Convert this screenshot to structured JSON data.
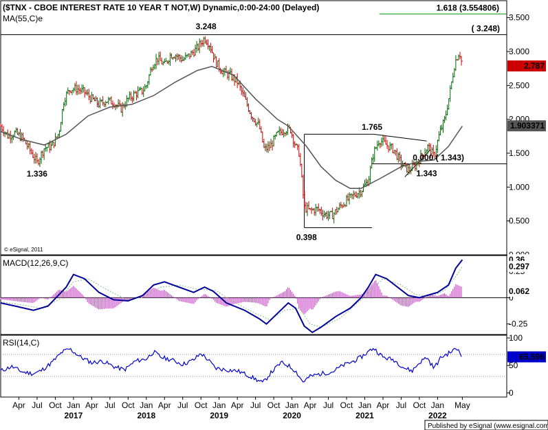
{
  "chart_data": [
    {
      "type": "candlestick",
      "title": "($TNX - CBOE INTEREST RATE 10 YEAR T NOT,W) Dynamic,0:00-24:00 (Delayed)",
      "indicator": "MA(55,C)e",
      "copyright": "© eSignal, 2011",
      "ylim": [
        0,
        3.75
      ],
      "y_ticks": [
        "3.500",
        "3.000",
        "2.500",
        "2.000",
        "1.500",
        "1.000",
        "0.500",
        "0.000"
      ],
      "price_tag": {
        "label": "2.787",
        "value": 2.787,
        "color": "#cc0000"
      },
      "ma_tag": {
        "label": "1.903371",
        "value": 1.903371,
        "color": "#555555"
      },
      "annotations": [
        {
          "label": "3.248",
          "date": 2018.82,
          "value": 3.248,
          "position": "above"
        },
        {
          "label": "( 3.248)",
          "value": 3.248,
          "position": "right"
        },
        {
          "label": "1.618 (3.554806)",
          "value": 3.554806,
          "color": "#009900",
          "position": "right"
        },
        {
          "label": "1.336",
          "date": 2016.5,
          "value": 1.336,
          "position": "below"
        },
        {
          "label": "0.398",
          "date": 2020.2,
          "value": 0.398,
          "position": "below"
        },
        {
          "label": "1.765",
          "date": 2021.1,
          "value": 1.765,
          "position": "above"
        },
        {
          "label": "0.000 ( 1.343)",
          "value": 1.343,
          "position": "right"
        },
        {
          "label": "1.343",
          "date": 2021.85,
          "value": 1.343,
          "position": "below"
        }
      ],
      "levels": [
        {
          "value": 3.248,
          "start": 2016.0,
          "end": 2022.95
        },
        {
          "value": 3.554806,
          "start": 2021.2,
          "end": 2022.95,
          "color": "#009900"
        },
        {
          "value": 1.343,
          "start": 2021.1,
          "end": 2022.95
        }
      ],
      "series_close": [
        [
          2016.0,
          1.9
        ],
        [
          2016.1,
          1.75
        ],
        [
          2016.2,
          1.8
        ],
        [
          2016.3,
          1.72
        ],
        [
          2016.4,
          1.55
        ],
        [
          2016.5,
          1.36
        ],
        [
          2016.6,
          1.58
        ],
        [
          2016.7,
          1.6
        ],
        [
          2016.8,
          1.8
        ],
        [
          2016.87,
          2.3
        ],
        [
          2016.95,
          2.45
        ],
        [
          2017.05,
          2.45
        ],
        [
          2017.15,
          2.4
        ],
        [
          2017.25,
          2.3
        ],
        [
          2017.35,
          2.22
        ],
        [
          2017.45,
          2.28
        ],
        [
          2017.55,
          2.25
        ],
        [
          2017.65,
          2.15
        ],
        [
          2017.75,
          2.3
        ],
        [
          2017.85,
          2.38
        ],
        [
          2017.95,
          2.42
        ],
        [
          2018.0,
          2.5
        ],
        [
          2018.08,
          2.8
        ],
        [
          2018.15,
          2.9
        ],
        [
          2018.25,
          2.8
        ],
        [
          2018.33,
          2.95
        ],
        [
          2018.4,
          2.95
        ],
        [
          2018.5,
          2.88
        ],
        [
          2018.6,
          2.95
        ],
        [
          2018.7,
          3.05
        ],
        [
          2018.8,
          3.2
        ],
        [
          2018.87,
          3.1
        ],
        [
          2018.95,
          2.85
        ],
        [
          2019.05,
          2.7
        ],
        [
          2019.15,
          2.65
        ],
        [
          2019.25,
          2.55
        ],
        [
          2019.35,
          2.3
        ],
        [
          2019.45,
          2.05
        ],
        [
          2019.55,
          1.9
        ],
        [
          2019.62,
          1.55
        ],
        [
          2019.7,
          1.6
        ],
        [
          2019.8,
          1.78
        ],
        [
          2019.9,
          1.85
        ],
        [
          2019.98,
          1.85
        ],
        [
          2020.05,
          1.6
        ],
        [
          2020.1,
          1.5
        ],
        [
          2020.17,
          0.7
        ],
        [
          2020.25,
          0.65
        ],
        [
          2020.35,
          0.68
        ],
        [
          2020.45,
          0.6
        ],
        [
          2020.55,
          0.58
        ],
        [
          2020.65,
          0.7
        ],
        [
          2020.75,
          0.8
        ],
        [
          2020.85,
          0.88
        ],
        [
          2020.95,
          0.95
        ],
        [
          2021.05,
          1.1
        ],
        [
          2021.12,
          1.5
        ],
        [
          2021.2,
          1.7
        ],
        [
          2021.3,
          1.62
        ],
        [
          2021.4,
          1.55
        ],
        [
          2021.5,
          1.35
        ],
        [
          2021.6,
          1.25
        ],
        [
          2021.7,
          1.32
        ],
        [
          2021.8,
          1.5
        ],
        [
          2021.87,
          1.6
        ],
        [
          2021.95,
          1.45
        ],
        [
          2022.03,
          1.8
        ],
        [
          2022.1,
          2.0
        ],
        [
          2022.17,
          2.4
        ],
        [
          2022.24,
          2.85
        ],
        [
          2022.3,
          3.0
        ],
        [
          2022.34,
          2.787
        ]
      ],
      "ma_series": [
        [
          2016.0,
          1.82
        ],
        [
          2016.3,
          1.7
        ],
        [
          2016.6,
          1.62
        ],
        [
          2016.9,
          1.78
        ],
        [
          2017.2,
          2.05
        ],
        [
          2017.5,
          2.18
        ],
        [
          2017.8,
          2.22
        ],
        [
          2018.1,
          2.35
        ],
        [
          2018.4,
          2.55
        ],
        [
          2018.7,
          2.72
        ],
        [
          2018.9,
          2.78
        ],
        [
          2019.2,
          2.65
        ],
        [
          2019.5,
          2.3
        ],
        [
          2019.8,
          2.0
        ],
        [
          2019.95,
          1.9
        ],
        [
          2020.2,
          1.6
        ],
        [
          2020.4,
          1.3
        ],
        [
          2020.6,
          1.1
        ],
        [
          2020.8,
          0.98
        ],
        [
          2020.95,
          0.98
        ],
        [
          2021.2,
          1.12
        ],
        [
          2021.5,
          1.3
        ],
        [
          2021.75,
          1.38
        ],
        [
          2021.95,
          1.4
        ],
        [
          2022.15,
          1.6
        ],
        [
          2022.34,
          1.9
        ]
      ],
      "x_ticks_months": [
        "Apr",
        "Jul",
        "Oct",
        "Jan",
        "Apr",
        "Jul",
        "Oct",
        "Jan",
        "Apr",
        "Jul",
        "Oct",
        "Jan",
        "Apr",
        "Jul",
        "Oct",
        "Jan",
        "Apr",
        "Jul",
        "Oct",
        "Jan",
        "Apr",
        "Jul",
        "Oct",
        "Jan",
        "May"
      ],
      "x_ticks_years": [
        "2017",
        "2018",
        "2019",
        "2020",
        "2021",
        "2022"
      ]
    },
    {
      "type": "line",
      "title": "MACD(12,26,9,C)",
      "ylim": [
        -0.35,
        0.4
      ],
      "y_ticks": [
        "0.25",
        "0",
        "-0.25"
      ],
      "tags": [
        {
          "label": "0.36",
          "value": 0.36,
          "color": "#000099"
        },
        {
          "label": "0.297",
          "value": 0.297,
          "color": "#009900"
        },
        {
          "label": "0.062",
          "value": 0.062,
          "color": "#cc33cc"
        }
      ],
      "series": [
        {
          "name": "MACD",
          "color": "#000099",
          "points": [
            [
              2016.0,
              -0.05
            ],
            [
              2016.2,
              -0.08
            ],
            [
              2016.45,
              -0.12
            ],
            [
              2016.65,
              -0.08
            ],
            [
              2016.9,
              0.1
            ],
            [
              2017.0,
              0.22
            ],
            [
              2017.15,
              0.18
            ],
            [
              2017.35,
              0.05
            ],
            [
              2017.55,
              -0.02
            ],
            [
              2017.75,
              -0.03
            ],
            [
              2017.95,
              0.02
            ],
            [
              2018.1,
              0.12
            ],
            [
              2018.25,
              0.15
            ],
            [
              2018.45,
              0.1
            ],
            [
              2018.65,
              0.05
            ],
            [
              2018.8,
              0.1
            ],
            [
              2018.92,
              0.06
            ],
            [
              2019.1,
              -0.05
            ],
            [
              2019.35,
              -0.12
            ],
            [
              2019.55,
              -0.2
            ],
            [
              2019.65,
              -0.25
            ],
            [
              2019.8,
              -0.15
            ],
            [
              2019.95,
              -0.05
            ],
            [
              2020.05,
              -0.1
            ],
            [
              2020.17,
              -0.27
            ],
            [
              2020.28,
              -0.33
            ],
            [
              2020.4,
              -0.28
            ],
            [
              2020.6,
              -0.18
            ],
            [
              2020.8,
              -0.1
            ],
            [
              2020.95,
              0.0
            ],
            [
              2021.05,
              0.1
            ],
            [
              2021.15,
              0.22
            ],
            [
              2021.3,
              0.18
            ],
            [
              2021.45,
              0.1
            ],
            [
              2021.6,
              0.02
            ],
            [
              2021.75,
              0.0
            ],
            [
              2021.9,
              0.03
            ],
            [
              2022.0,
              0.05
            ],
            [
              2022.15,
              0.12
            ],
            [
              2022.25,
              0.28
            ],
            [
              2022.34,
              0.36
            ]
          ]
        },
        {
          "name": "Signal",
          "color": "#88bb88",
          "points": [
            [
              2016.0,
              -0.04
            ],
            [
              2016.3,
              -0.07
            ],
            [
              2016.55,
              -0.1
            ],
            [
              2016.8,
              -0.02
            ],
            [
              2017.0,
              0.15
            ],
            [
              2017.2,
              0.18
            ],
            [
              2017.45,
              0.08
            ],
            [
              2017.7,
              -0.01
            ],
            [
              2017.95,
              0.0
            ],
            [
              2018.2,
              0.1
            ],
            [
              2018.45,
              0.12
            ],
            [
              2018.7,
              0.08
            ],
            [
              2018.95,
              0.07
            ],
            [
              2019.2,
              -0.04
            ],
            [
              2019.5,
              -0.15
            ],
            [
              2019.7,
              -0.21
            ],
            [
              2019.9,
              -0.12
            ],
            [
              2020.1,
              -0.1
            ],
            [
              2020.25,
              -0.25
            ],
            [
              2020.4,
              -0.28
            ],
            [
              2020.65,
              -0.2
            ],
            [
              2020.9,
              -0.05
            ],
            [
              2021.1,
              0.08
            ],
            [
              2021.25,
              0.18
            ],
            [
              2021.5,
              0.12
            ],
            [
              2021.7,
              0.03
            ],
            [
              2021.9,
              0.01
            ],
            [
              2022.1,
              0.07
            ],
            [
              2022.25,
              0.2
            ],
            [
              2022.34,
              0.297
            ]
          ]
        }
      ]
    },
    {
      "type": "line",
      "title": "RSI(14,C)",
      "ylim": [
        0,
        100
      ],
      "y_ticks": [
        "100",
        "50",
        "0"
      ],
      "tags": [
        {
          "label": "65.596",
          "value": 65.596,
          "color": "#0000cc"
        }
      ],
      "series": [
        {
          "name": "RSI",
          "color": "#0000cc",
          "points": [
            [
              2016.0,
              40
            ],
            [
              2016.15,
              48
            ],
            [
              2016.3,
              38
            ],
            [
              2016.45,
              35
            ],
            [
              2016.55,
              40
            ],
            [
              2016.7,
              55
            ],
            [
              2016.85,
              75
            ],
            [
              2016.95,
              80
            ],
            [
              2017.1,
              65
            ],
            [
              2017.25,
              55
            ],
            [
              2017.4,
              58
            ],
            [
              2017.55,
              48
            ],
            [
              2017.7,
              42
            ],
            [
              2017.85,
              58
            ],
            [
              2018.0,
              62
            ],
            [
              2018.1,
              75
            ],
            [
              2018.2,
              65
            ],
            [
              2018.35,
              60
            ],
            [
              2018.5,
              52
            ],
            [
              2018.65,
              60
            ],
            [
              2018.75,
              72
            ],
            [
              2018.85,
              60
            ],
            [
              2018.95,
              45
            ],
            [
              2019.1,
              42
            ],
            [
              2019.25,
              40
            ],
            [
              2019.4,
              32
            ],
            [
              2019.5,
              25
            ],
            [
              2019.6,
              18
            ],
            [
              2019.7,
              35
            ],
            [
              2019.85,
              55
            ],
            [
              2019.95,
              50
            ],
            [
              2020.05,
              40
            ],
            [
              2020.15,
              20
            ],
            [
              2020.25,
              30
            ],
            [
              2020.4,
              35
            ],
            [
              2020.55,
              38
            ],
            [
              2020.7,
              50
            ],
            [
              2020.85,
              58
            ],
            [
              2020.95,
              65
            ],
            [
              2021.05,
              75
            ],
            [
              2021.12,
              82
            ],
            [
              2021.25,
              65
            ],
            [
              2021.4,
              60
            ],
            [
              2021.55,
              45
            ],
            [
              2021.65,
              40
            ],
            [
              2021.75,
              55
            ],
            [
              2021.85,
              65
            ],
            [
              2021.95,
              45
            ],
            [
              2022.05,
              65
            ],
            [
              2022.15,
              72
            ],
            [
              2022.25,
              80
            ],
            [
              2022.3,
              78
            ],
            [
              2022.34,
              65.596
            ]
          ]
        }
      ]
    }
  ],
  "footer": "Published by eSignal (www.esignal.com)"
}
